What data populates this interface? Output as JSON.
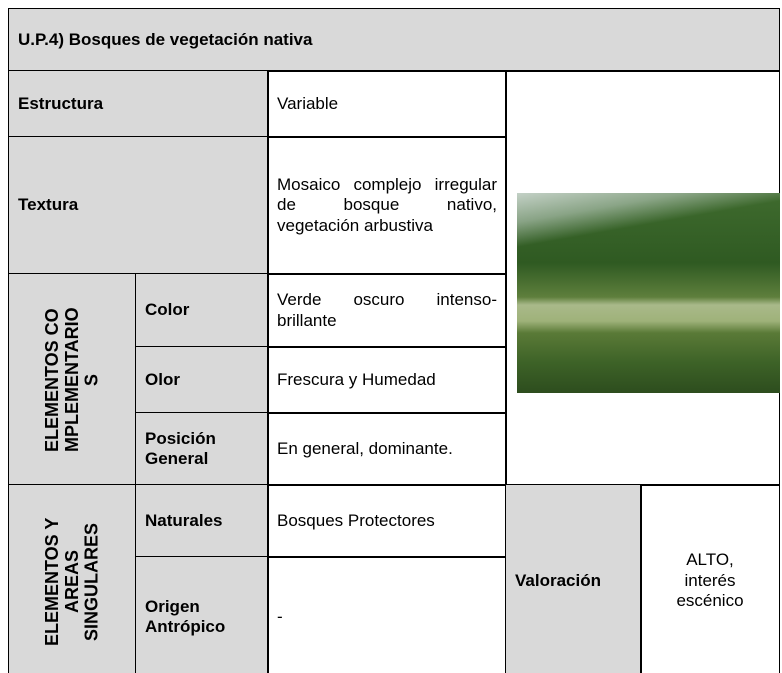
{
  "title": "U.P.4) Bosques de vegetación nativa",
  "rows": [
    {
      "label": "Estructura",
      "value": "Variable"
    },
    {
      "label": "Textura",
      "value": "Mosaico complejo irregular de bosque nativo, vegetación arbustiva"
    }
  ],
  "groups": [
    {
      "label": "ELEMENTOS COMPLEMENTARIOS",
      "items": [
        {
          "label": "Color",
          "value": "Verde oscuro intenso-brillante"
        },
        {
          "label": "Olor",
          "value": "Frescura y Humedad"
        },
        {
          "label": "Posición General",
          "value": "En general, dominante."
        }
      ]
    },
    {
      "label": "ELEMENTOS Y AREAS SINGULARES",
      "items": [
        {
          "label": "Naturales",
          "value": "Bosques Protectores"
        },
        {
          "label": "Origen Antrópico",
          "value": "-"
        }
      ]
    }
  ],
  "assessment": {
    "label": "Valoración",
    "value": "ALTO, interés escénico"
  }
}
